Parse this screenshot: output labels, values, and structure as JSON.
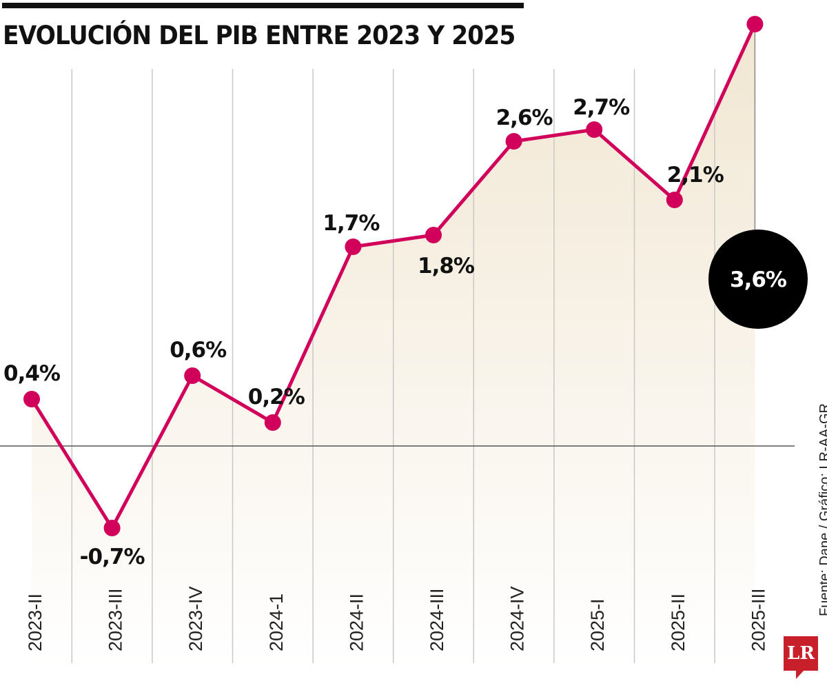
{
  "title": "EVOLUCIÓN DEL PIB ENTRE 2023 Y 2025",
  "source": "Fuente: Dane / Gráfico: LR-AA-GR",
  "logo": "LR",
  "colors": {
    "line": "#d1005a",
    "fill": "#f1e6d2",
    "highlight": "#000000"
  },
  "chart_data": {
    "type": "line",
    "title": "EVOLUCIÓN DEL PIB ENTRE 2023 Y 2025",
    "categories": [
      "2023-II",
      "2023-III",
      "2023-IV",
      "2024-1",
      "2024-II",
      "2024-III",
      "2024-IV",
      "2025-I",
      "2025-II",
      "2025-III"
    ],
    "values": [
      0.4,
      -0.7,
      0.6,
      0.2,
      1.7,
      1.8,
      2.6,
      2.7,
      2.1,
      3.6
    ],
    "labels": [
      "0,4%",
      "-0,7%",
      "0,6%",
      "0,2%",
      "1,7%",
      "1,8%",
      "2,6%",
      "2,7%",
      "2,1%",
      "3,6%"
    ],
    "unit": "%",
    "highlight": "2025-III",
    "grid": true
  }
}
